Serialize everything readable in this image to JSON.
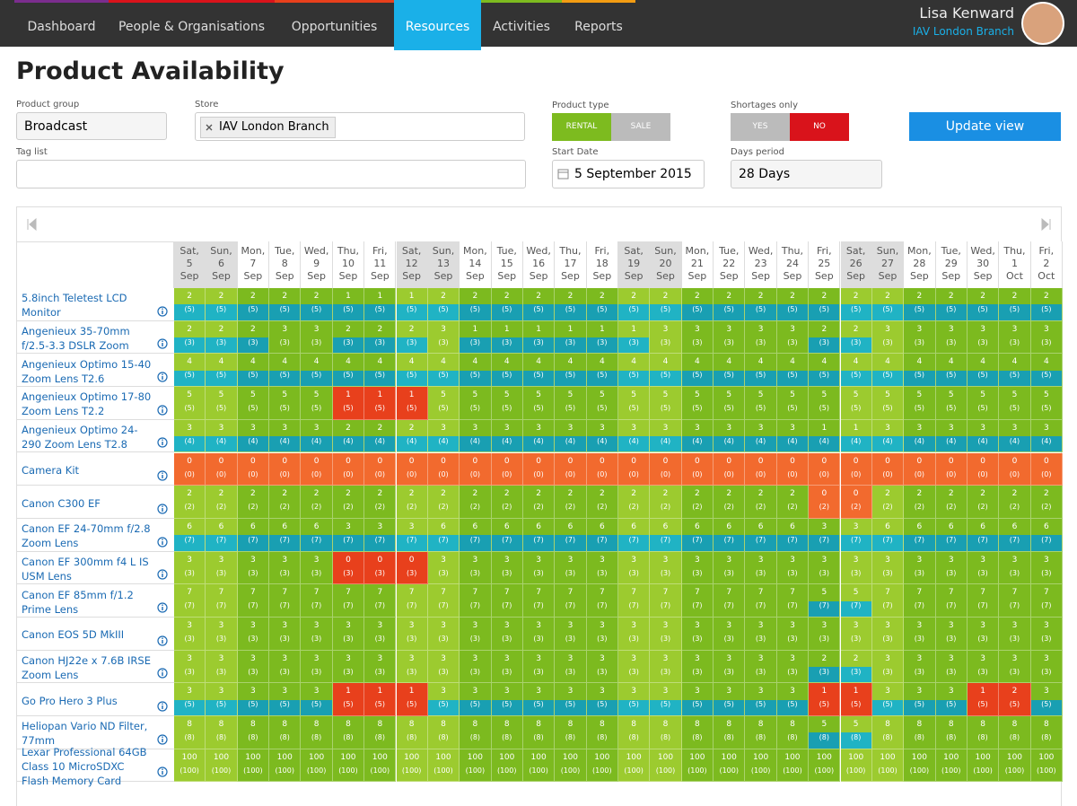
{
  "nav": {
    "items": [
      "Dashboard",
      "People & Organisations",
      "Opportunities",
      "Resources",
      "Activities",
      "Reports"
    ],
    "active": 3,
    "user": "Lisa Kenward",
    "branch": "IAV London Branch"
  },
  "page": {
    "title": "Product Availability"
  },
  "form": {
    "product_group": {
      "label": "Product group",
      "value": "Broadcast"
    },
    "store": {
      "label": "Store",
      "value": "IAV London Branch"
    },
    "tag_list": {
      "label": "Tag list"
    },
    "product_type": {
      "label": "Product type",
      "options": [
        "RENTAL",
        "SALE"
      ]
    },
    "start_date": {
      "label": "Start Date",
      "value": "5 September 2015"
    },
    "shortages_only": {
      "label": "Shortages only",
      "options": [
        "YES",
        "NO"
      ]
    },
    "days_period": {
      "label": "Days period",
      "value": "28 Days"
    },
    "button": "Update view"
  },
  "grid": {
    "days": [
      {
        "dow": "Sat,",
        "day": "5",
        "mon": "Sep"
      },
      {
        "dow": "Sun,",
        "day": "6",
        "mon": "Sep"
      },
      {
        "dow": "Mon,",
        "day": "7",
        "mon": "Sep"
      },
      {
        "dow": "Tue,",
        "day": "8",
        "mon": "Sep"
      },
      {
        "dow": "Wed,",
        "day": "9",
        "mon": "Sep"
      },
      {
        "dow": "Thu,",
        "day": "10",
        "mon": "Sep"
      },
      {
        "dow": "Fri,",
        "day": "11",
        "mon": "Sep"
      },
      {
        "dow": "Sat,",
        "day": "12",
        "mon": "Sep"
      },
      {
        "dow": "Sun,",
        "day": "13",
        "mon": "Sep"
      },
      {
        "dow": "Mon,",
        "day": "14",
        "mon": "Sep"
      },
      {
        "dow": "Tue,",
        "day": "15",
        "mon": "Sep"
      },
      {
        "dow": "Wed,",
        "day": "16",
        "mon": "Sep"
      },
      {
        "dow": "Thu,",
        "day": "17",
        "mon": "Sep"
      },
      {
        "dow": "Fri,",
        "day": "18",
        "mon": "Sep"
      },
      {
        "dow": "Sat,",
        "day": "19",
        "mon": "Sep"
      },
      {
        "dow": "Sun,",
        "day": "20",
        "mon": "Sep"
      },
      {
        "dow": "Mon,",
        "day": "21",
        "mon": "Sep"
      },
      {
        "dow": "Tue,",
        "day": "22",
        "mon": "Sep"
      },
      {
        "dow": "Wed,",
        "day": "23",
        "mon": "Sep"
      },
      {
        "dow": "Thu,",
        "day": "24",
        "mon": "Sep"
      },
      {
        "dow": "Fri,",
        "day": "25",
        "mon": "Sep"
      },
      {
        "dow": "Sat,",
        "day": "26",
        "mon": "Sep"
      },
      {
        "dow": "Sun,",
        "day": "27",
        "mon": "Sep"
      },
      {
        "dow": "Mon,",
        "day": "28",
        "mon": "Sep"
      },
      {
        "dow": "Tue,",
        "day": "29",
        "mon": "Sep"
      },
      {
        "dow": "Wed,",
        "day": "30",
        "mon": "Sep"
      },
      {
        "dow": "Thu,",
        "day": "1",
        "mon": "Oct"
      },
      {
        "dow": "Fri,",
        "day": "2",
        "mon": "Oct"
      }
    ],
    "rows": [
      {
        "name": "5.8inch Teletest LCD Monitor",
        "total": 5,
        "total_label": "(5)",
        "available": [
          2,
          2,
          2,
          2,
          2,
          1,
          1,
          1,
          2,
          2,
          2,
          2,
          2,
          2,
          2,
          2,
          2,
          2,
          2,
          2,
          2,
          2,
          2,
          2,
          2,
          2,
          2,
          2
        ],
        "shortage": []
      },
      {
        "name": "Angenieux 35-70mm f/2.5-3.3 DSLR Zoom",
        "total": 3,
        "total_label": "(3)",
        "available": [
          2,
          2,
          2,
          3,
          3,
          2,
          2,
          2,
          3,
          1,
          1,
          1,
          1,
          1,
          1,
          3,
          3,
          3,
          3,
          3,
          2,
          2,
          3,
          3,
          3,
          3,
          3,
          3
        ],
        "shortage": []
      },
      {
        "name": "Angenieux Optimo 15-40 Zoom Lens T2.6",
        "total": 5,
        "total_label": "(5)",
        "available": [
          4,
          4,
          4,
          4,
          4,
          4,
          4,
          4,
          4,
          4,
          4,
          4,
          4,
          4,
          4,
          4,
          4,
          4,
          4,
          4,
          4,
          4,
          4,
          4,
          4,
          4,
          4,
          4
        ],
        "shortage": []
      },
      {
        "name": "Angenieux Optimo 17-80 Zoom Lens T2.2",
        "total": 5,
        "total_label": "(5)",
        "available": [
          5,
          5,
          5,
          5,
          5,
          1,
          1,
          1,
          5,
          5,
          5,
          5,
          5,
          5,
          5,
          5,
          5,
          5,
          5,
          5,
          5,
          5,
          5,
          5,
          5,
          5,
          5,
          5
        ],
        "shortage": [
          5,
          6,
          7
        ]
      },
      {
        "name": "Angenieux Optimo 24-290 Zoom Lens T2.8",
        "total": 4,
        "total_label": "(4)",
        "available": [
          3,
          3,
          3,
          3,
          3,
          2,
          2,
          2,
          3,
          3,
          3,
          3,
          3,
          3,
          3,
          3,
          3,
          3,
          3,
          3,
          1,
          1,
          3,
          3,
          3,
          3,
          3,
          3
        ],
        "shortage": []
      },
      {
        "name": "Camera Kit",
        "total": 0,
        "total_label": "(0)",
        "available": [
          0,
          0,
          0,
          0,
          0,
          0,
          0,
          0,
          0,
          0,
          0,
          0,
          0,
          0,
          0,
          0,
          0,
          0,
          0,
          0,
          0,
          0,
          0,
          0,
          0,
          0,
          0,
          0
        ],
        "shortage": []
      },
      {
        "name": "Canon C300 EF",
        "total": 2,
        "total_label": "(2)",
        "available": [
          2,
          2,
          2,
          2,
          2,
          2,
          2,
          2,
          2,
          2,
          2,
          2,
          2,
          2,
          2,
          2,
          2,
          2,
          2,
          2,
          0,
          0,
          2,
          2,
          2,
          2,
          2,
          2
        ],
        "shortage": []
      },
      {
        "name": "Canon EF 24-70mm f/2.8 Zoom Lens",
        "total": 7,
        "total_label": "(7)",
        "available": [
          6,
          6,
          6,
          6,
          6,
          3,
          3,
          3,
          6,
          6,
          6,
          6,
          6,
          6,
          6,
          6,
          6,
          6,
          6,
          6,
          3,
          3,
          6,
          6,
          6,
          6,
          6,
          6
        ],
        "shortage": []
      },
      {
        "name": "Canon EF 300mm f4 L IS USM Lens",
        "total": 3,
        "total_label": "(3)",
        "available": [
          3,
          3,
          3,
          3,
          3,
          0,
          0,
          0,
          3,
          3,
          3,
          3,
          3,
          3,
          3,
          3,
          3,
          3,
          3,
          3,
          3,
          3,
          3,
          3,
          3,
          3,
          3,
          3
        ],
        "shortage": [
          5,
          6,
          7
        ]
      },
      {
        "name": "Canon EF 85mm f/1.2 Prime Lens",
        "total": 7,
        "total_label": "(7)",
        "available": [
          7,
          7,
          7,
          7,
          7,
          7,
          7,
          7,
          7,
          7,
          7,
          7,
          7,
          7,
          7,
          7,
          7,
          7,
          7,
          7,
          5,
          5,
          7,
          7,
          7,
          7,
          7,
          7
        ],
        "shortage": []
      },
      {
        "name": "Canon EOS 5D MkIII",
        "total": 3,
        "total_label": "(3)",
        "available": [
          3,
          3,
          3,
          3,
          3,
          3,
          3,
          3,
          3,
          3,
          3,
          3,
          3,
          3,
          3,
          3,
          3,
          3,
          3,
          3,
          3,
          3,
          3,
          3,
          3,
          3,
          3,
          3
        ],
        "shortage": []
      },
      {
        "name": "Canon HJ22e x 7.6B IRSE Zoom Lens",
        "total": 3,
        "total_label": "(3)",
        "available": [
          3,
          3,
          3,
          3,
          3,
          3,
          3,
          3,
          3,
          3,
          3,
          3,
          3,
          3,
          3,
          3,
          3,
          3,
          3,
          3,
          2,
          2,
          3,
          3,
          3,
          3,
          3,
          3
        ],
        "shortage": []
      },
      {
        "name": "Go Pro Hero 3 Plus",
        "total": 5,
        "total_label": "(5)",
        "available": [
          3,
          3,
          3,
          3,
          3,
          1,
          1,
          1,
          3,
          3,
          3,
          3,
          3,
          3,
          3,
          3,
          3,
          3,
          3,
          3,
          1,
          1,
          3,
          3,
          3,
          1,
          2,
          3
        ],
        "shortage": [
          5,
          6,
          7,
          20,
          21,
          25,
          26
        ]
      },
      {
        "name": "Heliopan Vario ND Filter, 77mm",
        "total": 8,
        "total_label": "(8)",
        "available": [
          8,
          8,
          8,
          8,
          8,
          8,
          8,
          8,
          8,
          8,
          8,
          8,
          8,
          8,
          8,
          8,
          8,
          8,
          8,
          8,
          5,
          5,
          8,
          8,
          8,
          8,
          8,
          8
        ],
        "shortage": []
      },
      {
        "name": "Lexar Professional 64GB Class 10 MicroSDXC Flash Memory Card",
        "total": 100,
        "total_label": "(100)",
        "available": [
          100,
          100,
          100,
          100,
          100,
          100,
          100,
          100,
          100,
          100,
          100,
          100,
          100,
          100,
          100,
          100,
          100,
          100,
          100,
          100,
          100,
          100,
          100,
          100,
          100,
          100,
          100,
          100
        ],
        "shortage": []
      }
    ]
  }
}
